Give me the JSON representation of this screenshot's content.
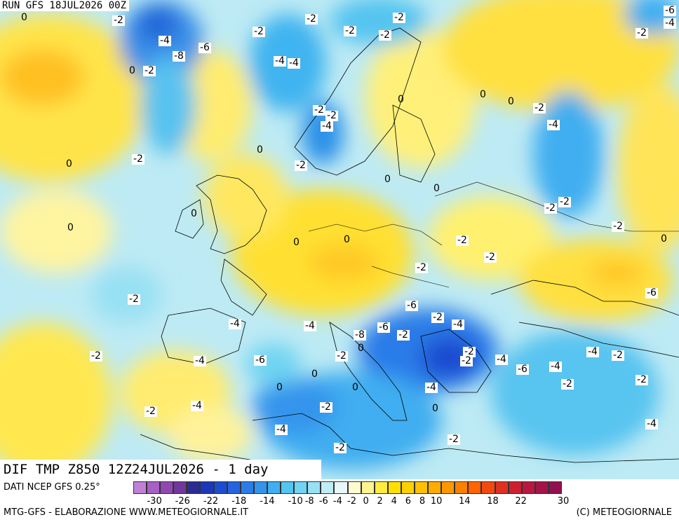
{
  "header": {
    "run_label": "RUN GFS 18JUL2026 00Z"
  },
  "map": {
    "title": "DIF TMP Z850 12Z24JUL2026 - 1 day",
    "contour_labels": [
      "0",
      "-2",
      "-4",
      "-8",
      "-6",
      "-2",
      "-2",
      "-2",
      "-2",
      "-2",
      "-6",
      "-4",
      "0",
      "-2",
      "-4",
      "-4",
      "0",
      "0",
      "0",
      "-2",
      "-4",
      "-2",
      "-2",
      "-2",
      "-4",
      "-2",
      "0",
      "0",
      "-2",
      "0",
      "0",
      "-2",
      "-2",
      "0",
      "0",
      "0",
      "0",
      "-2",
      "-2",
      "0",
      "-2",
      "-2",
      "-2",
      "-6",
      "-4",
      "-4",
      "-6",
      "-2",
      "-4",
      "-8",
      "-6",
      "-2",
      "0",
      "-2",
      "-2",
      "-4",
      "-6",
      "-2",
      "-2",
      "-4",
      "-6",
      "-4",
      "-4",
      "-2",
      "-2",
      "0",
      "0",
      "0",
      "-4",
      "-2",
      "0",
      "-2",
      "-4",
      "-2",
      "-4",
      "-4",
      "-2",
      "-2"
    ]
  },
  "legend": {
    "source": "DATI NCEP GFS 0.25°",
    "colors": [
      "#c080d8",
      "#a860c4",
      "#9048b0",
      "#70389c",
      "#2c2c90",
      "#1c38b8",
      "#1c4cd0",
      "#2464e0",
      "#2c7ce8",
      "#3494ec",
      "#40aef0",
      "#54c4f0",
      "#70d4f2",
      "#98e0f4",
      "#c0ecf6",
      "#e8f8f8",
      "#fffbd0",
      "#fff490",
      "#ffec40",
      "#ffe000",
      "#ffd000",
      "#ffc000",
      "#ffac00",
      "#ff9800",
      "#ff8000",
      "#ff6400",
      "#f04a10",
      "#e03020",
      "#cc2030",
      "#b81840",
      "#a41448",
      "#901050"
    ],
    "ticks": [
      "-30",
      "-26",
      "-22",
      "-18",
      "-14",
      "-10",
      "-8",
      "-6",
      "-4",
      "-2",
      "0",
      "2",
      "4",
      "6",
      "8",
      "10",
      "14",
      "18",
      "22",
      "30"
    ]
  },
  "footer": {
    "credit": "MTG-GFS - ELABORAZIONE WWW.METEOGIORNALE.IT",
    "copyright": "(C) METEOGIORNALE"
  }
}
